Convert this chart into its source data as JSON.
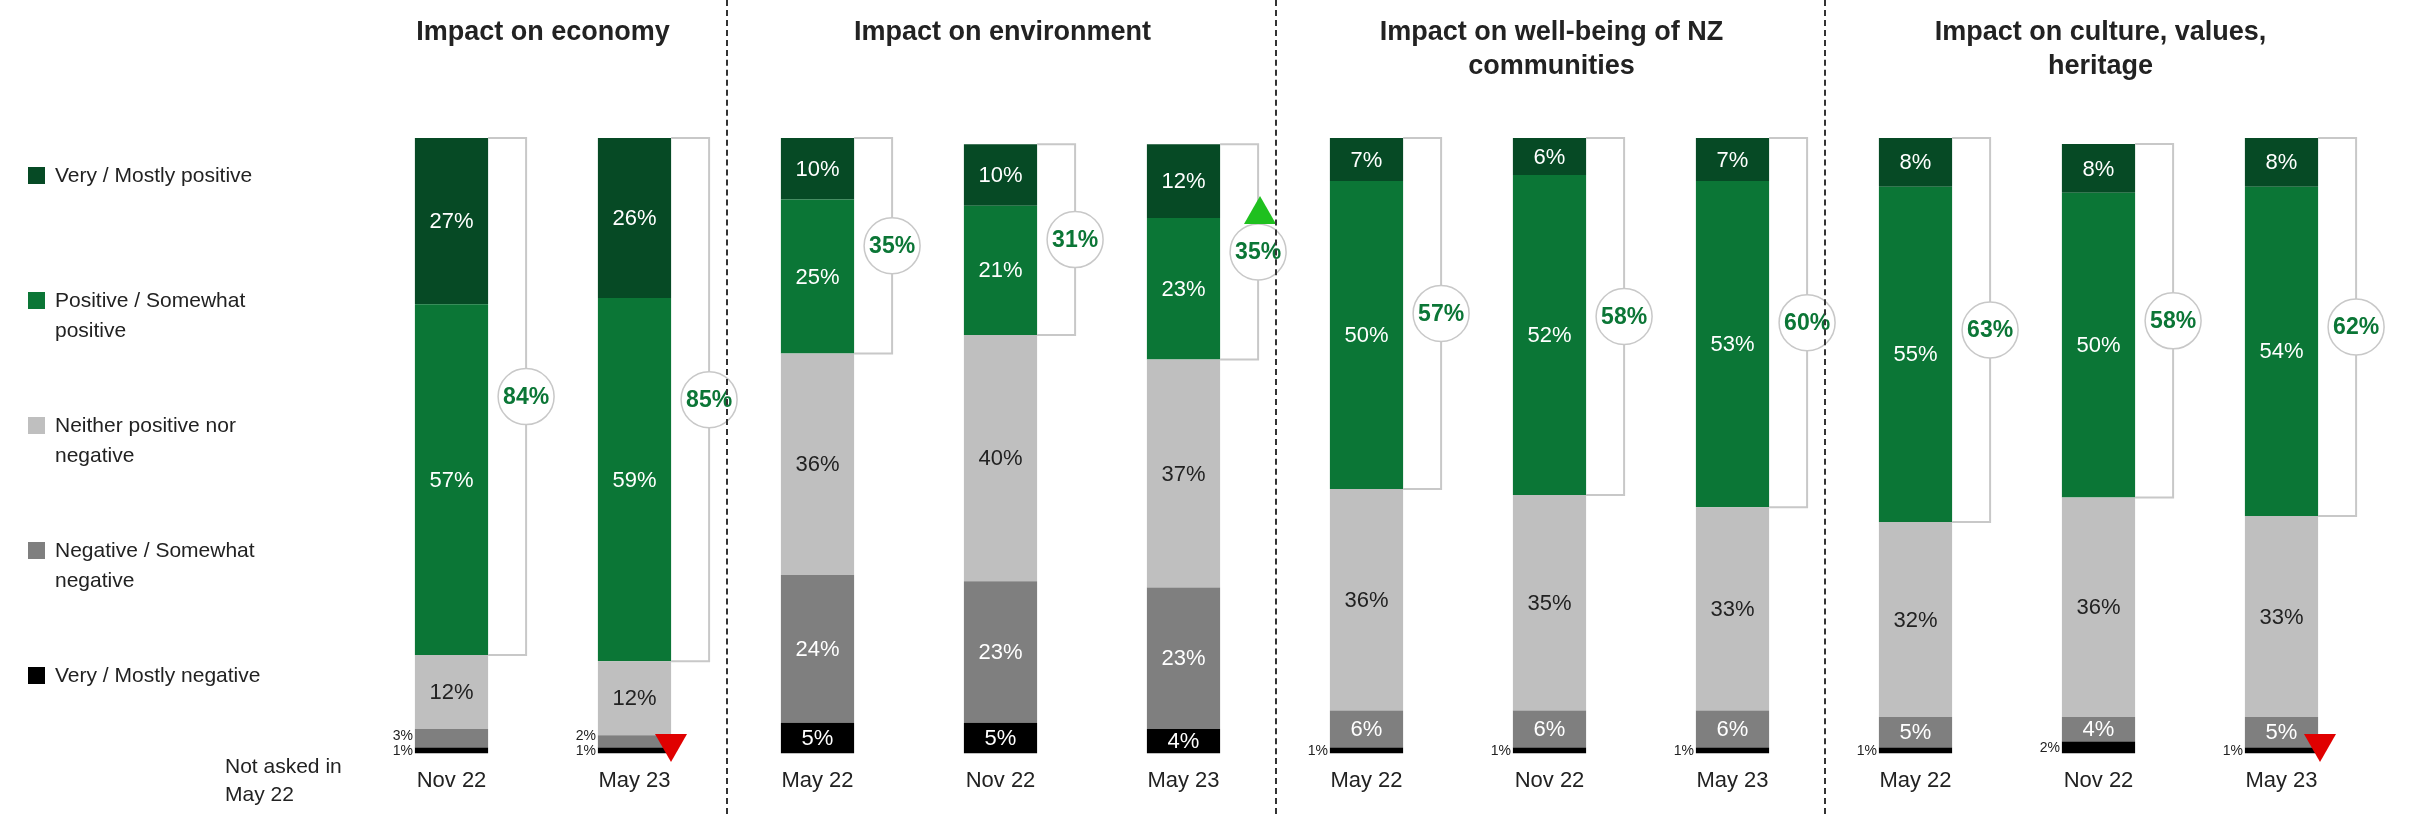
{
  "chart_data": [
    {
      "type": "bar",
      "title": "Impact on economy",
      "categories": [
        "Nov 22",
        "May 23"
      ],
      "stacked": true,
      "legend": "left",
      "grid": false,
      "series": [
        {
          "name": "Very / Mostly negative",
          "color": "#000000",
          "values": [
            1,
            1
          ],
          "value_labels": [
            "1%",
            "1%"
          ]
        },
        {
          "name": "Negative / Somewhat negative",
          "color": "#7f7f7f",
          "values": [
            3,
            2
          ],
          "value_labels": [
            "3%",
            "2%"
          ]
        },
        {
          "name": "Neither positive nor negative",
          "color": "#bfbfbf",
          "values": [
            12,
            12
          ],
          "value_labels": [
            "12%",
            "12%"
          ]
        },
        {
          "name": "Positive / Somewhat positive",
          "color": "#0b7636",
          "values": [
            57,
            59
          ],
          "value_labels": [
            "57%",
            "59%"
          ]
        },
        {
          "name": "Very / Mostly positive",
          "color": "#064a25",
          "values": [
            27,
            26
          ],
          "value_labels": [
            "27%",
            "26%"
          ]
        }
      ],
      "annotations": [
        "84%",
        "85%",
        "Not asked in May 22"
      ]
    },
    {
      "type": "bar",
      "title": "Impact on environment",
      "categories": [
        "May 22",
        "Nov 22",
        "May 23"
      ],
      "stacked": true,
      "grid": false,
      "series": [
        {
          "color": "#000000",
          "values": [
            5,
            5,
            4
          ],
          "value_labels": [
            "5%",
            "5%",
            "4%"
          ]
        },
        {
          "color": "#7f7f7f",
          "values": [
            24,
            23,
            23
          ],
          "value_labels": [
            "24%",
            "23%",
            "23%"
          ]
        },
        {
          "color": "#bfbfbf",
          "values": [
            36,
            40,
            37
          ],
          "value_labels": [
            "36%",
            "40%",
            "37%"
          ]
        },
        {
          "color": "#0b7636",
          "values": [
            25,
            21,
            23
          ],
          "value_labels": [
            "25%",
            "21%",
            "23%"
          ]
        },
        {
          "color": "#064a25",
          "values": [
            10,
            10,
            12
          ],
          "value_labels": [
            "10%",
            "10%",
            "12%"
          ]
        }
      ],
      "annotations": [
        "35%",
        "31%",
        "35%"
      ]
    },
    {
      "type": "bar",
      "title": "Impact on well-being of NZ communities",
      "categories": [
        "May 22",
        "Nov 22",
        "May 23"
      ],
      "stacked": true,
      "grid": false,
      "series": [
        {
          "color": "#000000",
          "values": [
            1,
            1,
            1
          ],
          "value_labels": [
            "1%",
            "1%",
            "1%"
          ]
        },
        {
          "color": "#7f7f7f",
          "values": [
            6,
            6,
            6
          ],
          "value_labels": [
            "6%",
            "6%",
            "6%"
          ]
        },
        {
          "color": "#bfbfbf",
          "values": [
            36,
            35,
            33
          ],
          "value_labels": [
            "36%",
            "35%",
            "33%"
          ]
        },
        {
          "color": "#0b7636",
          "values": [
            50,
            52,
            53
          ],
          "value_labels": [
            "50%",
            "52%",
            "53%"
          ]
        },
        {
          "color": "#064a25",
          "values": [
            7,
            6,
            7
          ],
          "value_labels": [
            "7%",
            "6%",
            "7%"
          ]
        }
      ],
      "annotations": [
        "57%",
        "58%",
        "60%"
      ]
    },
    {
      "type": "bar",
      "title": "Impact on culture, values, heritage",
      "categories": [
        "May 22",
        "Nov 22",
        "May 23"
      ],
      "stacked": true,
      "grid": false,
      "series": [
        {
          "color": "#000000",
          "values": [
            1,
            2,
            1
          ],
          "value_labels": [
            "1%",
            "2%",
            "1%"
          ]
        },
        {
          "color": "#7f7f7f",
          "values": [
            5,
            4,
            5
          ],
          "value_labels": [
            "5%",
            "4%",
            "5%"
          ]
        },
        {
          "color": "#bfbfbf",
          "values": [
            32,
            36,
            33
          ],
          "value_labels": [
            "32%",
            "36%",
            "33%"
          ]
        },
        {
          "color": "#0b7636",
          "values": [
            55,
            50,
            54
          ],
          "value_labels": [
            "55%",
            "50%",
            "54%"
          ]
        },
        {
          "color": "#064a25",
          "values": [
            8,
            8,
            8
          ],
          "value_labels": [
            "8%",
            "8%",
            "8%"
          ]
        }
      ],
      "annotations": [
        "63%",
        "58%",
        "62%"
      ]
    }
  ]
}
